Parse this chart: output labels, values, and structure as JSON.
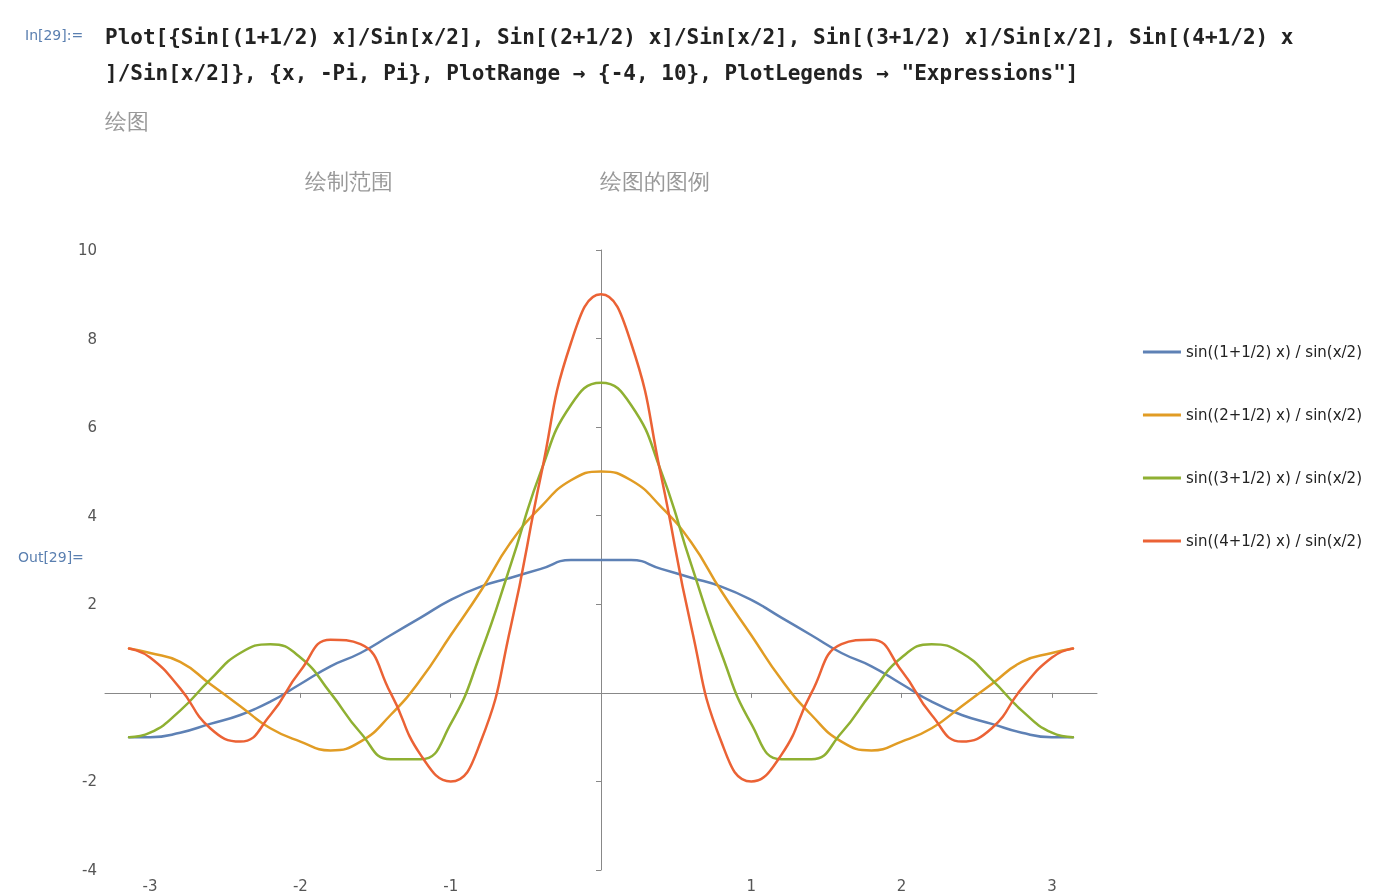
{
  "chart_data": {
    "type": "line",
    "title": "Plot[{Sin[(1+1/2) x]/Sin[x/2], Sin[(2+1/2) x]/Sin[x/2], Sin[(3+1/2) x]/Sin[x/2], Sin[(4+1/2) x]/Sin[x/2]}, {x, -Pi, Pi}, PlotRange → {-4, 10}, PlotLegends → \"Expressions\"]",
    "annotations": [
      "In[29]:=",
      "绘图",
      "绘制范围",
      "绘图的图例",
      "Out[29]="
    ],
    "x": [
      -3.14,
      -3.0,
      -2.8,
      -2.6,
      -2.4,
      -2.2,
      -2.0,
      -1.8,
      -1.6,
      -1.4,
      -1.2,
      -1.0,
      -0.8,
      -0.6,
      -0.4,
      -0.2,
      0,
      0.2,
      0.4,
      0.6,
      0.8,
      1.0,
      1.2,
      1.4,
      1.6,
      1.8,
      2.0,
      2.2,
      2.4,
      2.6,
      2.8,
      3.0,
      3.14
    ],
    "series": [
      {
        "name": "sin((1+1/2) x) / sin(x/2)",
        "color": "#5e81b5",
        "values": [
          -1.0,
          -1.0,
          -0.9,
          -0.7,
          -0.5,
          -0.2,
          0.2,
          0.6,
          0.9,
          1.3,
          1.7,
          2.1,
          2.4,
          2.6,
          2.8,
          3.0,
          3.0,
          3.0,
          2.8,
          2.6,
          2.4,
          2.1,
          1.7,
          1.3,
          0.9,
          0.6,
          0.2,
          -0.2,
          -0.5,
          -0.7,
          -0.9,
          -1.0,
          -1.0
        ]
      },
      {
        "name": "sin((2+1/2) x) / sin(x/2)",
        "color": "#e19c24",
        "values": [
          1.0,
          0.9,
          0.7,
          0.2,
          -0.3,
          -0.8,
          -1.1,
          -1.3,
          -1.1,
          -0.5,
          0.3,
          1.3,
          2.3,
          3.4,
          4.2,
          4.8,
          5.0,
          4.8,
          4.2,
          3.4,
          2.3,
          1.3,
          0.3,
          -0.5,
          -1.1,
          -1.3,
          -1.1,
          -0.8,
          -0.3,
          0.2,
          0.7,
          0.9,
          1.0
        ]
      },
      {
        "name": "sin((3+1/2) x) / sin(x/2)",
        "color": "#8fb032",
        "values": [
          -1.0,
          -0.9,
          -0.4,
          0.3,
          0.9,
          1.1,
          0.8,
          0.0,
          -0.9,
          -1.5,
          -1.5,
          -0.7,
          0.9,
          2.9,
          5.0,
          6.5,
          7.0,
          6.5,
          5.0,
          2.9,
          0.9,
          -0.7,
          -1.5,
          -1.5,
          -0.9,
          0.0,
          0.8,
          1.1,
          0.9,
          0.3,
          -0.4,
          -0.9,
          -1.0
        ]
      },
      {
        "name": "sin((4+1/2) x) / sin(x/2)",
        "color": "#eb6235",
        "values": [
          1.0,
          0.8,
          0.1,
          -0.8,
          -1.1,
          -0.5,
          0.5,
          1.2,
          1.1,
          0.0,
          -1.4,
          -2.0,
          -1.1,
          1.5,
          4.9,
          7.9,
          9.0,
          7.9,
          4.9,
          1.5,
          -1.1,
          -2.0,
          -1.4,
          0.0,
          1.1,
          1.2,
          0.5,
          -0.5,
          -1.1,
          -0.8,
          0.1,
          0.8,
          1.0
        ]
      }
    ],
    "xlim": [
      -3.3,
      3.3
    ],
    "xticks": [
      -3,
      -2,
      -1,
      1,
      2,
      3
    ],
    "ylim": [
      -4,
      10
    ],
    "yticks": [
      -4,
      -2,
      2,
      4,
      6,
      8,
      10
    ],
    "grid": false,
    "legend": "right",
    "marker": "none",
    "line_style": "solid"
  }
}
